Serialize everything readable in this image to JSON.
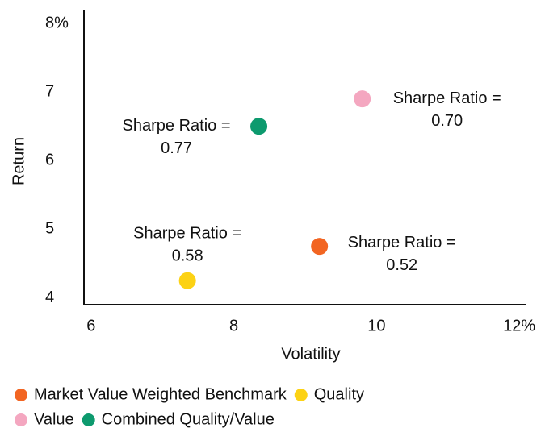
{
  "chart_data": {
    "type": "scatter",
    "x_label": "Volatility",
    "y_label": "Return",
    "xlim": [
      5.9,
      12.1
    ],
    "xticks": [
      6,
      8,
      10,
      {
        "value": 12,
        "label": "12%"
      }
    ],
    "ylim": [
      3.9,
      8.2
    ],
    "yticks": [
      4,
      5,
      6,
      7,
      {
        "value": 8,
        "label": "8%"
      }
    ],
    "series": [
      {
        "name": "Market Value Weighted Benchmark",
        "color": "#f26522",
        "x": [
          9.2
        ],
        "values": [
          4.75
        ],
        "annotation": [
          "Sharpe Ratio =",
          "0.52"
        ]
      },
      {
        "name": "Quality",
        "color": "#fcd214",
        "x": [
          7.35
        ],
        "values": [
          4.25
        ],
        "annotation": [
          "Sharpe Ratio =",
          "0.58"
        ]
      },
      {
        "name": "Value",
        "color": "#f4a7c0",
        "x": [
          9.8
        ],
        "values": [
          6.9
        ],
        "annotation": [
          "Sharpe Ratio =",
          "0.70"
        ]
      },
      {
        "name": "Combined Quality/Value",
        "color": "#0d9a6e",
        "x": [
          8.35
        ],
        "values": [
          6.5
        ],
        "annotation": [
          "Sharpe Ratio =",
          "0.77"
        ]
      }
    ]
  }
}
